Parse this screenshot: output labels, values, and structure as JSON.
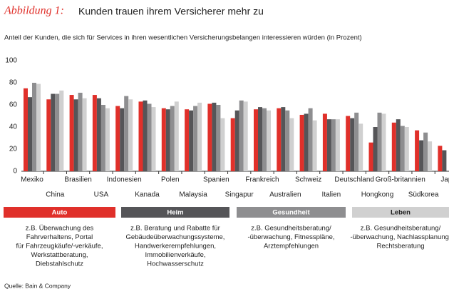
{
  "chart_data": {
    "type": "bar",
    "figure_label": "Abbildung 1:",
    "title": "Kunden trauen ihrem Versicherer mehr zu",
    "subtitle": "Anteil der Kunden, die sich für Services in ihren wesentlichen Versicherungsbelangen interessieren würden (in Prozent)",
    "categories": [
      "Mexiko",
      "China",
      "Brasilien",
      "USA",
      "Indonesien",
      "Kanada",
      "Polen",
      "Malaysia",
      "Spanien",
      "Singapur",
      "Frankreich",
      "Australien",
      "Schweiz",
      "Italien",
      "Deutschland",
      "Hongkong",
      "Groß-britannien",
      "Südkorea",
      "Jap"
    ],
    "series": [
      {
        "name": "Auto",
        "color": "#e0302a",
        "values": [
          75,
          65,
          69,
          69,
          59,
          63,
          57,
          56,
          61,
          48,
          56,
          57,
          51,
          52,
          50,
          26,
          44,
          37,
          23
        ],
        "description": [
          "z.B. Überwachung des",
          "Fahrverhaltens, Portal",
          "für Fahrzeugkäufe/-verkäufe,",
          "Werkstattberatung,",
          "Diebstahlschutz"
        ]
      },
      {
        "name": "Heim",
        "color": "#555558",
        "values": [
          67,
          70,
          65,
          66,
          57,
          64,
          56,
          55,
          62,
          55,
          58,
          58,
          52,
          47,
          48,
          40,
          47,
          28,
          19
        ],
        "description": [
          "z.B. Beratung und Rabatte für",
          "Gebäudeüberwachungssysteme,",
          "Handwerkerempfehlungen,",
          "Immobilienverkäufe,",
          "Hochwasserschutz"
        ]
      },
      {
        "name": "Gesundheit",
        "color": "#8e8e90",
        "values": [
          80,
          70,
          71,
          60,
          68,
          61,
          59,
          59,
          60,
          64,
          57,
          55,
          57,
          47,
          53,
          53,
          41,
          35,
          null
        ],
        "description": [
          "z.B. Gesundheitsberatung/",
          "-überwachung, Fitnesspläne,",
          "Arztempfehlungen"
        ]
      },
      {
        "name": "Leben",
        "color": "#d0d0d0",
        "values": [
          79,
          73,
          66,
          57,
          65,
          58,
          63,
          62,
          48,
          63,
          55,
          48,
          46,
          47,
          43,
          52,
          40,
          27,
          null
        ],
        "description": [
          "z.B. Gesundheitsberatung/",
          "-überwachung, Nachlassplanung,",
          "Rechtsberatung"
        ]
      }
    ],
    "ylim": [
      0,
      100
    ],
    "yticks": [
      0,
      20,
      40,
      60,
      80,
      100
    ],
    "source": "Quelle: Bain & Company"
  }
}
